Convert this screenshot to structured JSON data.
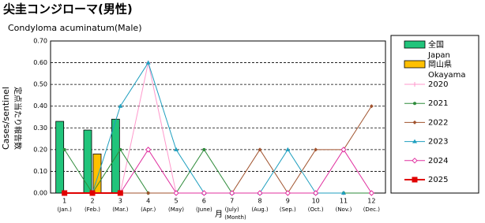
{
  "chart_data": {
    "type": "bar_line",
    "title": "尖圭コンジローマ(男性)",
    "subtitle": "Condyloma acuminatum(Male)",
    "y_label": "Cases/sentinel",
    "y_label_ja": "定点当たり報告数",
    "x_label": "月",
    "x_label_en": "(Month)",
    "categories": [
      "1",
      "2",
      "3",
      "4",
      "5",
      "6",
      "7",
      "8",
      "9",
      "10",
      "11",
      "12"
    ],
    "month_labels": [
      "(Jan.)",
      "(Feb.)",
      "(Mar.)",
      "(Apr.)",
      "(May)",
      "(June)",
      "(July)",
      "(Aug.)",
      "(Sep.)",
      "(Oct.)",
      "(Nov.)",
      "(Dec.)"
    ],
    "ylim": [
      0,
      0.7
    ],
    "yticks": [
      {
        "value": 0,
        "label": "0.00"
      },
      {
        "value": 0.1,
        "label": "0.10"
      },
      {
        "value": 0.2,
        "label": "0.20"
      },
      {
        "value": 0.3,
        "label": "0.30"
      },
      {
        "value": 0.4,
        "label": "0.40"
      },
      {
        "value": 0.5,
        "label": "0.50"
      },
      {
        "value": 0.6,
        "label": "0.60"
      },
      {
        "value": 0.7,
        "label": "0.70"
      }
    ],
    "grid": true,
    "legend": "right",
    "bar_series": [
      {
        "name": "全国",
        "name_en": "Japan",
        "color": "#21c47b",
        "values": [
          0.33,
          0.29,
          0.34,
          null,
          null,
          null,
          null,
          null,
          null,
          null,
          null,
          null
        ]
      },
      {
        "name": "岡山県",
        "name_en": "Okayama",
        "color": "#ffc000",
        "values": [
          0,
          0.18,
          0,
          null,
          null,
          null,
          null,
          null,
          null,
          null,
          null,
          null
        ]
      }
    ],
    "series": [
      {
        "name": "2020",
        "color": "#ff99cc",
        "marker": "plus",
        "values": [
          0,
          0,
          0,
          0.6,
          0,
          0,
          0,
          0,
          0,
          0,
          0,
          0
        ]
      },
      {
        "name": "2021",
        "color": "#2e8b3a",
        "marker": "dot",
        "values": [
          0.2,
          0,
          0.2,
          0,
          0,
          0.2,
          0,
          0,
          0,
          0,
          0,
          0
        ]
      },
      {
        "name": "2022",
        "color": "#a0522d",
        "marker": "diamond",
        "values": [
          0,
          0,
          0,
          0,
          0,
          0,
          0,
          0.2,
          0,
          0.2,
          0.2,
          0.4
        ]
      },
      {
        "name": "2023",
        "color": "#1f9fbf",
        "marker": "triangle",
        "values": [
          0,
          0,
          0.4,
          0.6,
          0.2,
          0,
          0,
          0,
          0.2,
          0,
          0,
          null
        ]
      },
      {
        "name": "2024",
        "color": "#e0309f",
        "marker": "open-diamond",
        "values": [
          0,
          0,
          0,
          0.2,
          0,
          0,
          0,
          0,
          0,
          0,
          0.2,
          0
        ]
      },
      {
        "name": "2025",
        "color": "#e00000",
        "marker": "square",
        "values": [
          0,
          0,
          0,
          null,
          null,
          null,
          null,
          null,
          null,
          null,
          null,
          null
        ]
      }
    ]
  }
}
